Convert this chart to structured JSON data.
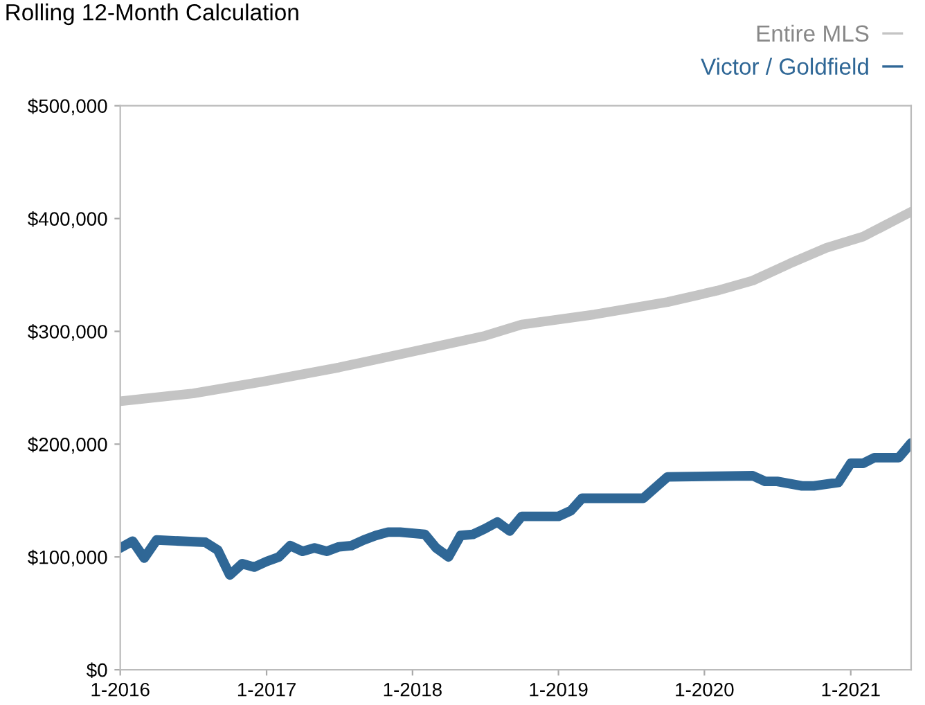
{
  "chart_data": {
    "type": "line",
    "title": "Rolling 12-Month Calculation",
    "xlim": [
      "2016-01",
      "2021-06"
    ],
    "xticks": [
      {
        "value": "2016-01",
        "label": "1-2016"
      },
      {
        "value": "2017-01",
        "label": "1-2017"
      },
      {
        "value": "2018-01",
        "label": "1-2018"
      },
      {
        "value": "2019-01",
        "label": "1-2019"
      },
      {
        "value": "2020-01",
        "label": "1-2020"
      },
      {
        "value": "2021-01",
        "label": "1-2021"
      }
    ],
    "ylim": [
      0,
      500000
    ],
    "yticks": [
      {
        "value": 0,
        "label": "$0"
      },
      {
        "value": 100000,
        "label": "$100,000"
      },
      {
        "value": 200000,
        "label": "$200,000"
      },
      {
        "value": 300000,
        "label": "$300,000"
      },
      {
        "value": 400000,
        "label": "$400,000"
      },
      {
        "value": 500000,
        "label": "$500,000"
      }
    ],
    "legend": "top right",
    "grid": false,
    "marker": "none",
    "line_style": "solid",
    "series": [
      {
        "name": "Entire MLS",
        "color": "#c4c4c4",
        "x": [
          "2016-01",
          "2016-07",
          "2017-01",
          "2017-07",
          "2018-01",
          "2018-07",
          "2018-10",
          "2019-04",
          "2019-10",
          "2020-02",
          "2020-05",
          "2020-08",
          "2020-11",
          "2021-02",
          "2021-06"
        ],
        "values": [
          238000,
          245000,
          256000,
          268000,
          282000,
          296000,
          306000,
          315000,
          326000,
          336000,
          345000,
          360000,
          374000,
          384000,
          406000
        ]
      },
      {
        "name": "Victor / Goldfield",
        "color": "#2f6796",
        "x": [
          "2016-01",
          "2016-02",
          "2016-03",
          "2016-04",
          "2016-08",
          "2016-09",
          "2016-10",
          "2016-11",
          "2016-12",
          "2017-01",
          "2017-02",
          "2017-03",
          "2017-04",
          "2017-05",
          "2017-06",
          "2017-07",
          "2017-08",
          "2017-09",
          "2017-10",
          "2017-11",
          "2017-12",
          "2018-02",
          "2018-03",
          "2018-04",
          "2018-05",
          "2018-06",
          "2018-07",
          "2018-08",
          "2018-09",
          "2018-10",
          "2019-01",
          "2019-02",
          "2019-03",
          "2019-08",
          "2019-10",
          "2020-05",
          "2020-06",
          "2020-07",
          "2020-09",
          "2020-10",
          "2020-12",
          "2021-01",
          "2021-02",
          "2021-03",
          "2021-05",
          "2021-06"
        ],
        "values": [
          108000,
          114000,
          99000,
          115000,
          113000,
          106000,
          84000,
          94000,
          91000,
          96000,
          100000,
          110000,
          105000,
          108000,
          105000,
          109000,
          110000,
          115000,
          119000,
          122000,
          122000,
          120000,
          108000,
          100000,
          119000,
          120000,
          125000,
          131000,
          123000,
          136000,
          136000,
          141000,
          152000,
          152000,
          171000,
          172000,
          167000,
          167000,
          163000,
          163000,
          166000,
          183000,
          183000,
          188000,
          188000,
          201000
        ]
      }
    ]
  }
}
